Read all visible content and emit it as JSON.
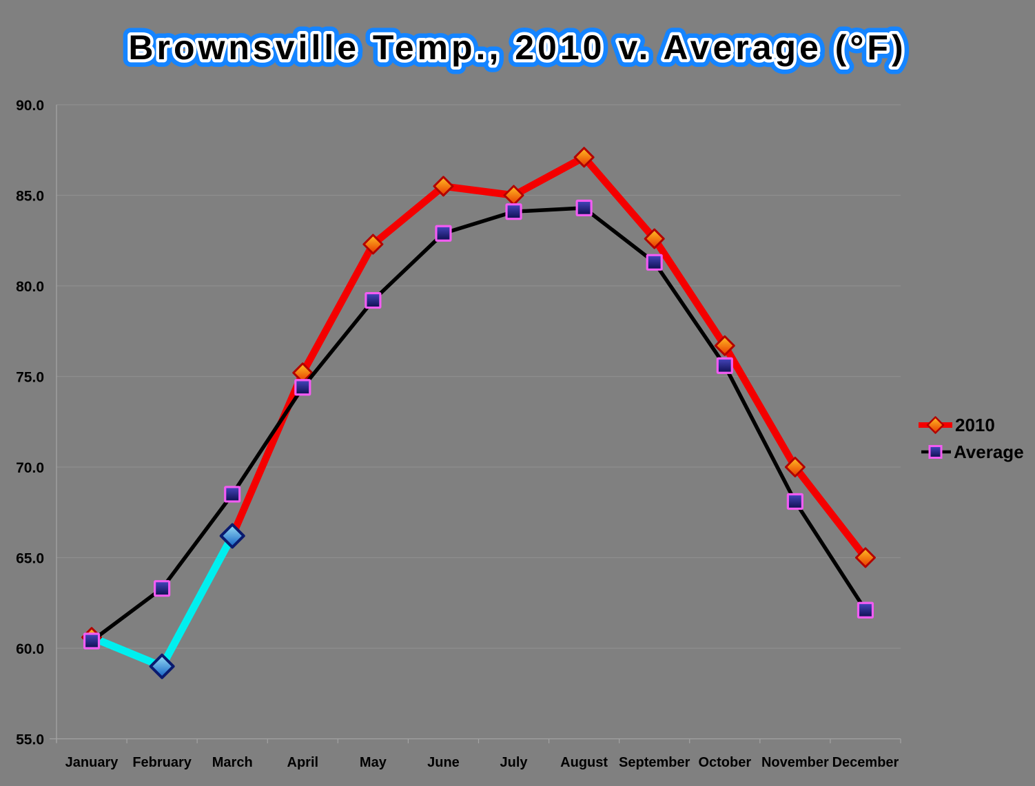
{
  "title": "Brownsville Temp., 2010 v. Average (°F)",
  "title_style": {
    "text_color": "#000000",
    "inner_outline_color": "#ffffff",
    "outer_outline_color": "#1584ff"
  },
  "background_color": "#808080",
  "grid_color": "#8e8e8e",
  "axis_color": "#a3a3a3",
  "chart_data": {
    "type": "line",
    "categories": [
      "January",
      "February",
      "March",
      "April",
      "May",
      "June",
      "July",
      "August",
      "September",
      "October",
      "November",
      "December"
    ],
    "series": [
      {
        "name": "2010",
        "values": [
          60.6,
          59.0,
          66.2,
          75.2,
          82.3,
          85.5,
          85.0,
          87.1,
          82.6,
          76.7,
          70.0,
          65.0
        ],
        "line_color": "#f40000",
        "line_width": 10.5,
        "marker": "diamond",
        "marker_fill_top": "#ffc024",
        "marker_fill_bottom": "#e83800",
        "marker_border": "#b20000"
      },
      {
        "name": "Average",
        "values": [
          60.4,
          63.3,
          68.5,
          74.4,
          79.2,
          82.9,
          84.1,
          84.3,
          81.3,
          75.6,
          68.1,
          62.1
        ],
        "line_color": "#000000",
        "line_width": 5.5,
        "marker": "square",
        "marker_fill_top": "#4646be",
        "marker_fill_bottom": "#0e0e50",
        "marker_border": "#f25cf2"
      }
    ],
    "highlight": {
      "series": "2010",
      "segment_point_indices": [
        0,
        1,
        2
      ],
      "line_color": "#00efef",
      "marker_indices": [
        1,
        2
      ],
      "marker_fill_top": "#9adff5",
      "marker_fill_bottom": "#1260c4",
      "marker_border": "#0a1a6e"
    },
    "axis": {
      "ymin": 55,
      "ymax": 90,
      "ystep": 5,
      "tick_decimals": 1
    },
    "yticks": [
      "55.0",
      "60.0",
      "65.0",
      "70.0",
      "75.0",
      "80.0",
      "85.0",
      "90.0"
    ],
    "grid": true,
    "legend_position": "right"
  }
}
